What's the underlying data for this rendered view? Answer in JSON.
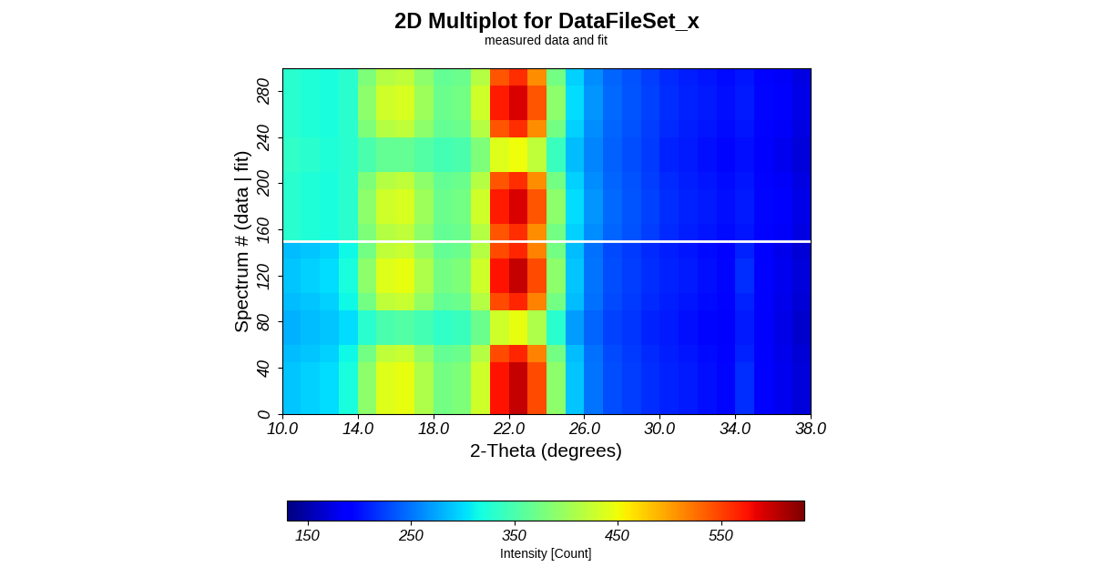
{
  "chart_data": {
    "type": "heatmap",
    "title": "2D Multiplot for DataFileSet_x",
    "subtitle": "measured data and fit",
    "x_label": "2-Theta (degrees)",
    "y_label": "Spectrum # (data | fit)",
    "xlim": [
      10,
      38
    ],
    "ylim": [
      0,
      300
    ],
    "xticks": [
      {
        "value": 10,
        "label": "10.0"
      },
      {
        "value": 14,
        "label": "14.0"
      },
      {
        "value": 18,
        "label": "18.0"
      },
      {
        "value": 22,
        "label": "22.0"
      },
      {
        "value": 26,
        "label": "26.0"
      },
      {
        "value": 30,
        "label": "30.0"
      },
      {
        "value": 34,
        "label": "34.0"
      },
      {
        "value": 38,
        "label": "38.0"
      }
    ],
    "yticks": [
      0,
      40,
      80,
      120,
      160,
      200,
      240,
      280
    ],
    "separator": 150,
    "x_edges": [
      10,
      11,
      12,
      13,
      14,
      15,
      16,
      17,
      18,
      19,
      20,
      21,
      22,
      23,
      24,
      25,
      26,
      27,
      28,
      29,
      30,
      31,
      32,
      33,
      34,
      35,
      36,
      37,
      38
    ],
    "y_edges": [
      0,
      15,
      30,
      45,
      60,
      75,
      90,
      105,
      120,
      135,
      150,
      165,
      180,
      195,
      210,
      225,
      240,
      255,
      270,
      285,
      300
    ],
    "cells": [
      [
        290,
        295,
        300,
        320,
        390,
        440,
        445,
        410,
        375,
        380,
        430,
        575,
        600,
        545,
        390,
        290,
        250,
        230,
        222,
        215,
        210,
        205,
        200,
        195,
        215,
        190,
        180,
        170
      ],
      [
        290,
        295,
        300,
        320,
        390,
        440,
        445,
        410,
        375,
        380,
        430,
        575,
        600,
        545,
        390,
        290,
        250,
        230,
        222,
        215,
        210,
        205,
        200,
        195,
        215,
        190,
        180,
        170
      ],
      [
        290,
        295,
        300,
        320,
        390,
        440,
        445,
        410,
        375,
        380,
        430,
        575,
        600,
        545,
        390,
        290,
        250,
        230,
        222,
        215,
        210,
        205,
        200,
        195,
        215,
        190,
        180,
        170
      ],
      [
        285,
        290,
        295,
        315,
        375,
        420,
        425,
        395,
        365,
        370,
        415,
        545,
        565,
        515,
        375,
        285,
        248,
        228,
        220,
        213,
        208,
        203,
        198,
        193,
        210,
        188,
        178,
        168
      ],
      [
        280,
        285,
        290,
        300,
        330,
        350,
        355,
        345,
        335,
        340,
        370,
        430,
        445,
        410,
        330,
        270,
        242,
        225,
        218,
        210,
        205,
        200,
        195,
        190,
        205,
        185,
        175,
        165
      ],
      [
        280,
        285,
        290,
        300,
        330,
        350,
        355,
        345,
        335,
        340,
        370,
        430,
        445,
        410,
        330,
        270,
        242,
        225,
        218,
        210,
        205,
        200,
        195,
        190,
        205,
        185,
        175,
        165
      ],
      [
        285,
        290,
        295,
        315,
        375,
        420,
        425,
        395,
        365,
        370,
        415,
        545,
        565,
        515,
        375,
        285,
        248,
        228,
        220,
        213,
        208,
        203,
        198,
        193,
        210,
        188,
        178,
        168
      ],
      [
        290,
        295,
        300,
        320,
        390,
        440,
        445,
        410,
        375,
        380,
        430,
        575,
        600,
        545,
        390,
        290,
        250,
        230,
        222,
        215,
        210,
        205,
        200,
        195,
        215,
        190,
        180,
        170
      ],
      [
        290,
        295,
        300,
        320,
        390,
        440,
        445,
        410,
        375,
        380,
        430,
        575,
        600,
        545,
        390,
        290,
        250,
        230,
        222,
        215,
        210,
        205,
        200,
        195,
        215,
        190,
        180,
        170
      ],
      [
        285,
        290,
        295,
        315,
        375,
        420,
        425,
        395,
        365,
        370,
        415,
        545,
        565,
        515,
        375,
        285,
        248,
        228,
        220,
        213,
        208,
        203,
        198,
        193,
        210,
        188,
        178,
        168
      ],
      [
        330,
        325,
        320,
        330,
        380,
        415,
        420,
        390,
        365,
        370,
        415,
        540,
        560,
        510,
        375,
        295,
        262,
        243,
        233,
        223,
        213,
        208,
        203,
        198,
        203,
        193,
        183,
        173
      ],
      [
        330,
        325,
        320,
        330,
        390,
        430,
        435,
        400,
        370,
        375,
        430,
        570,
        590,
        540,
        390,
        300,
        265,
        245,
        235,
        225,
        215,
        210,
        205,
        200,
        205,
        195,
        185,
        175
      ],
      [
        330,
        325,
        320,
        330,
        390,
        430,
        435,
        400,
        370,
        375,
        430,
        570,
        590,
        540,
        390,
        300,
        265,
        245,
        235,
        225,
        215,
        210,
        205,
        200,
        205,
        195,
        185,
        175
      ],
      [
        330,
        325,
        320,
        330,
        380,
        415,
        420,
        390,
        365,
        370,
        415,
        540,
        560,
        510,
        375,
        295,
        262,
        243,
        233,
        223,
        213,
        208,
        203,
        198,
        203,
        193,
        183,
        173
      ],
      [
        335,
        330,
        325,
        330,
        350,
        365,
        365,
        355,
        345,
        350,
        380,
        440,
        450,
        420,
        340,
        285,
        258,
        240,
        230,
        220,
        210,
        205,
        200,
        195,
        200,
        190,
        180,
        170
      ],
      [
        335,
        330,
        325,
        330,
        350,
        365,
        365,
        355,
        345,
        350,
        380,
        440,
        450,
        420,
        340,
        285,
        258,
        240,
        230,
        220,
        210,
        205,
        200,
        195,
        200,
        190,
        180,
        170
      ],
      [
        330,
        325,
        320,
        330,
        380,
        415,
        420,
        390,
        365,
        370,
        415,
        540,
        560,
        510,
        375,
        295,
        262,
        243,
        233,
        223,
        213,
        208,
        203,
        198,
        203,
        193,
        183,
        173
      ],
      [
        330,
        325,
        320,
        330,
        390,
        430,
        435,
        400,
        370,
        375,
        430,
        570,
        590,
        540,
        390,
        300,
        265,
        245,
        235,
        225,
        215,
        210,
        205,
        200,
        205,
        195,
        185,
        175
      ],
      [
        330,
        325,
        320,
        330,
        390,
        430,
        435,
        400,
        370,
        375,
        430,
        570,
        590,
        540,
        390,
        300,
        265,
        245,
        235,
        225,
        215,
        210,
        205,
        200,
        205,
        195,
        185,
        175
      ],
      [
        330,
        325,
        320,
        330,
        380,
        415,
        420,
        390,
        365,
        370,
        415,
        540,
        560,
        510,
        375,
        295,
        262,
        243,
        233,
        223,
        213,
        208,
        203,
        198,
        203,
        193,
        183,
        173
      ]
    ],
    "colorbar": {
      "range": [
        130,
        630
      ],
      "ticks": [
        150,
        250,
        350,
        450,
        550
      ],
      "label": "Intensity [Count]"
    }
  }
}
